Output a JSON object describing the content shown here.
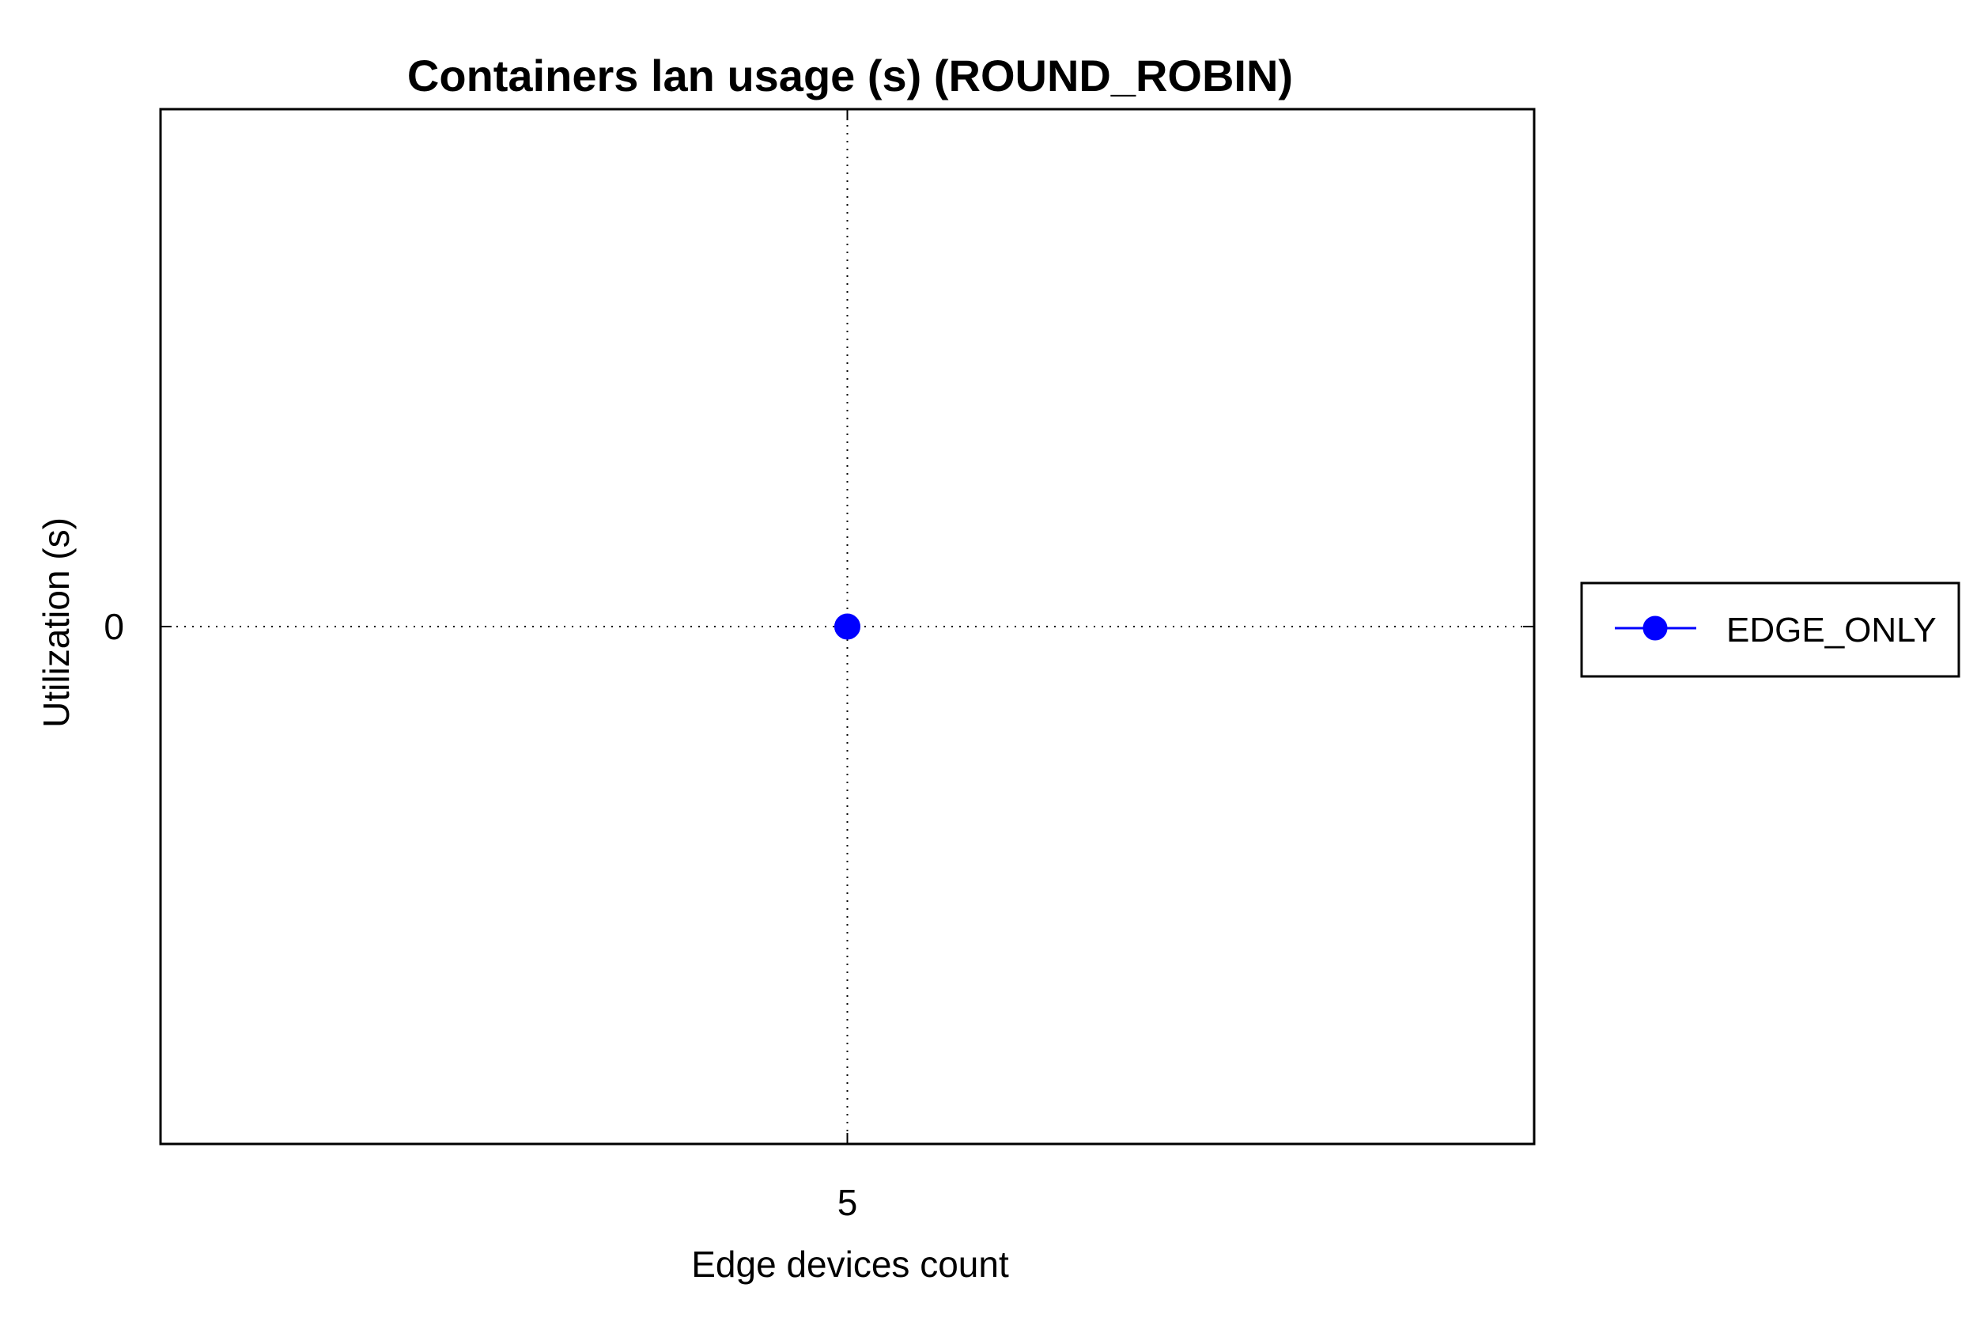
{
  "chart_data": {
    "type": "line",
    "title": "Containers lan usage (s) (ROUND_ROBIN)",
    "xlabel": "Edge devices count",
    "ylabel": "Utilization (s)",
    "x": [
      5
    ],
    "x_ticks": [
      "5"
    ],
    "y_ticks": [
      "0"
    ],
    "xlim": [
      4,
      6
    ],
    "ylim": [
      -1,
      1
    ],
    "grid": true,
    "legend_position": "outside-right",
    "series": [
      {
        "name": "EDGE_ONLY",
        "x": [
          5
        ],
        "values": [
          0
        ],
        "color": "#0000ff",
        "marker": "circle"
      }
    ]
  }
}
